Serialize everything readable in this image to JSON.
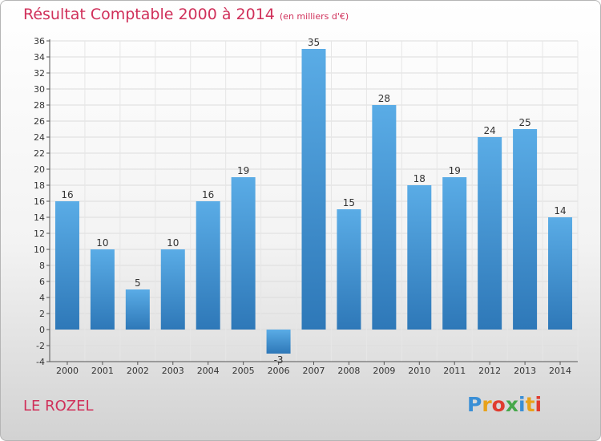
{
  "header": {
    "title": "Résultat Comptable 2000 à 2014",
    "subtitle": "(en milliers d'€)"
  },
  "footer": {
    "place": "LE ROZEL",
    "logo": "Proxiti",
    "logo_colors": [
      "#3a8fd6",
      "#e8a21b",
      "#e03c2f",
      "#47a84b",
      "#3a8fd6",
      "#e8a21b",
      "#e03c2f"
    ]
  },
  "chart_data": {
    "type": "bar",
    "title": "Résultat Comptable 2000 à 2014",
    "subtitle": "(en milliers d'€)",
    "categories": [
      "2000",
      "2001",
      "2002",
      "2003",
      "2004",
      "2005",
      "2006",
      "2007",
      "2008",
      "2009",
      "2010",
      "2011",
      "2012",
      "2013",
      "2014"
    ],
    "values": [
      16,
      10,
      5,
      10,
      16,
      19,
      -3,
      35,
      15,
      28,
      18,
      19,
      24,
      25,
      14
    ],
    "ylim": [
      -4,
      36
    ],
    "yticks": [
      -4,
      -2,
      0,
      2,
      4,
      6,
      8,
      10,
      12,
      14,
      16,
      18,
      20,
      22,
      24,
      26,
      28,
      30,
      32,
      34,
      36
    ],
    "grid": true,
    "bar_color_top": "#5aace6",
    "bar_color_bottom": "#2e78b8"
  }
}
